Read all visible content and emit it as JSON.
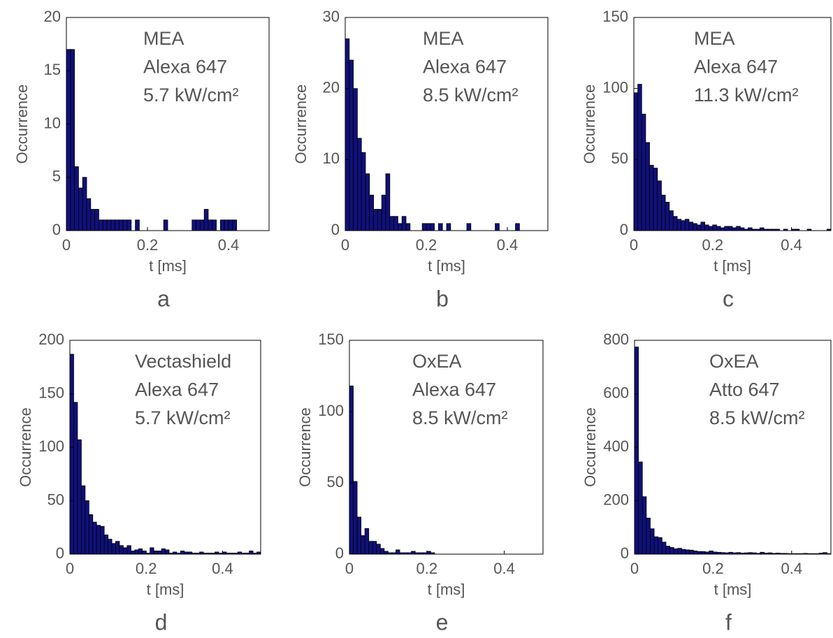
{
  "chart_data": [
    {
      "type": "histogram",
      "annotation": [
        "MEA",
        "Alexa 647",
        "5.7 kW/cm²"
      ],
      "xlabel": "t [ms]",
      "ylabel": "Occurrence",
      "panel": "a",
      "color": "#10107a",
      "bins": [
        0,
        0.01,
        0.02,
        0.03,
        0.04,
        0.05,
        0.06,
        0.07,
        0.08,
        0.09,
        0.1,
        0.11,
        0.12,
        0.13,
        0.14,
        0.15,
        0.16,
        0.17,
        0.18,
        0.19,
        0.2,
        0.21,
        0.22,
        0.23,
        0.24,
        0.25,
        0.26,
        0.27,
        0.28,
        0.29,
        0.3,
        0.31,
        0.32,
        0.33,
        0.34,
        0.35,
        0.36,
        0.37,
        0.38,
        0.39,
        0.4,
        0.41,
        0.42,
        0.43,
        0.44,
        0.45,
        0.46,
        0.47,
        0.48,
        0.49,
        0.5
      ],
      "values": [
        17,
        17,
        6,
        4,
        5,
        3,
        2,
        2,
        1,
        1,
        1,
        1,
        1,
        1,
        1,
        1,
        0,
        1,
        0,
        0,
        0,
        0,
        0,
        0,
        1,
        0,
        0,
        0,
        0,
        0,
        0,
        1,
        1,
        1,
        2,
        1,
        1,
        0,
        1,
        1,
        1,
        1,
        0,
        0,
        0,
        0,
        0,
        0,
        0,
        0
      ],
      "xlim": [
        0,
        0.5
      ],
      "xticks": [
        0,
        0.2,
        0.4
      ],
      "ylim": [
        0,
        20
      ],
      "yticks": [
        0,
        5,
        10,
        15,
        20
      ]
    },
    {
      "type": "histogram",
      "annotation": [
        "MEA",
        "Alexa 647",
        "8.5 kW/cm²"
      ],
      "xlabel": "t [ms]",
      "ylabel": "Occurrence",
      "panel": "b",
      "color": "#10107a",
      "bins": [
        0,
        0.01,
        0.02,
        0.03,
        0.04,
        0.05,
        0.06,
        0.07,
        0.08,
        0.09,
        0.1,
        0.11,
        0.12,
        0.13,
        0.14,
        0.15,
        0.16,
        0.17,
        0.18,
        0.19,
        0.2,
        0.21,
        0.22,
        0.23,
        0.24,
        0.25,
        0.26,
        0.27,
        0.28,
        0.29,
        0.3,
        0.31,
        0.32,
        0.33,
        0.34,
        0.35,
        0.36,
        0.37,
        0.38,
        0.39,
        0.4,
        0.41,
        0.42,
        0.43,
        0.44,
        0.45,
        0.46,
        0.47,
        0.48,
        0.49,
        0.5
      ],
      "values": [
        27,
        24,
        20,
        13,
        11,
        8,
        5,
        3,
        3,
        5,
        8,
        2,
        2,
        1,
        2,
        1,
        0,
        0,
        0,
        1,
        1,
        1,
        0,
        1,
        0,
        1,
        0,
        0,
        0,
        0,
        1,
        0,
        0,
        0,
        0,
        0,
        0,
        1,
        0,
        0,
        0,
        0,
        1,
        0,
        0,
        0,
        0,
        0,
        0,
        0
      ],
      "xlim": [
        0,
        0.5
      ],
      "xticks": [
        0,
        0.2,
        0.4
      ],
      "ylim": [
        0,
        30
      ],
      "yticks": [
        0,
        10,
        20,
        30
      ]
    },
    {
      "type": "histogram",
      "annotation": [
        "MEA",
        "Alexa 647",
        "11.3 kW/cm²"
      ],
      "xlabel": "t [ms]",
      "ylabel": "Occurrence",
      "panel": "c",
      "color": "#10107a",
      "bins": [
        0,
        0.01,
        0.02,
        0.03,
        0.04,
        0.05,
        0.06,
        0.07,
        0.08,
        0.09,
        0.1,
        0.11,
        0.12,
        0.13,
        0.14,
        0.15,
        0.16,
        0.17,
        0.18,
        0.19,
        0.2,
        0.21,
        0.22,
        0.23,
        0.24,
        0.25,
        0.26,
        0.27,
        0.28,
        0.29,
        0.3,
        0.31,
        0.32,
        0.33,
        0.34,
        0.35,
        0.36,
        0.37,
        0.38,
        0.39,
        0.4,
        0.41,
        0.42,
        0.43,
        0.44,
        0.45,
        0.46,
        0.47,
        0.48,
        0.49,
        0.5
      ],
      "values": [
        97,
        103,
        82,
        62,
        46,
        44,
        35,
        25,
        20,
        14,
        10,
        8,
        7,
        8,
        6,
        5,
        4,
        6,
        4,
        3,
        4,
        3,
        2,
        3,
        3,
        2,
        3,
        2,
        1,
        2,
        1,
        1,
        2,
        1,
        1,
        1,
        1,
        0,
        1,
        0,
        1,
        1,
        0,
        0,
        1,
        0,
        0,
        0,
        0,
        1
      ],
      "xlim": [
        0,
        0.5
      ],
      "xticks": [
        0,
        0.2,
        0.4
      ],
      "ylim": [
        0,
        150
      ],
      "yticks": [
        0,
        50,
        100,
        150
      ]
    },
    {
      "type": "histogram",
      "annotation": [
        "Vectashield",
        "Alexa 647",
        "5.7 kW/cm²"
      ],
      "xlabel": "t [ms]",
      "ylabel": "Occurrence",
      "panel": "d",
      "color": "#10107a",
      "bins": [
        0,
        0.01,
        0.02,
        0.03,
        0.04,
        0.05,
        0.06,
        0.07,
        0.08,
        0.09,
        0.1,
        0.11,
        0.12,
        0.13,
        0.14,
        0.15,
        0.16,
        0.17,
        0.18,
        0.19,
        0.2,
        0.21,
        0.22,
        0.23,
        0.24,
        0.25,
        0.26,
        0.27,
        0.28,
        0.29,
        0.3,
        0.31,
        0.32,
        0.33,
        0.34,
        0.35,
        0.36,
        0.37,
        0.38,
        0.39,
        0.4,
        0.41,
        0.42,
        0.43,
        0.44,
        0.45,
        0.46,
        0.47,
        0.48,
        0.49,
        0.5
      ],
      "values": [
        187,
        142,
        107,
        64,
        50,
        37,
        30,
        27,
        26,
        18,
        14,
        10,
        12,
        8,
        6,
        8,
        3,
        4,
        5,
        3,
        1,
        6,
        3,
        3,
        5,
        4,
        1,
        2,
        1,
        3,
        2,
        2,
        1,
        1,
        2,
        1,
        1,
        1,
        2,
        1,
        2,
        1,
        1,
        1,
        2,
        1,
        1,
        3,
        1,
        2
      ],
      "xlim": [
        0,
        0.5
      ],
      "xticks": [
        0,
        0.2,
        0.4
      ],
      "ylim": [
        0,
        200
      ],
      "yticks": [
        0,
        50,
        100,
        150,
        200
      ]
    },
    {
      "type": "histogram",
      "annotation": [
        "OxEA",
        "Alexa 647",
        "8.5 kW/cm²"
      ],
      "xlabel": "t [ms]",
      "ylabel": "Occurrence",
      "panel": "e",
      "color": "#10107a",
      "bins": [
        0,
        0.01,
        0.02,
        0.03,
        0.04,
        0.05,
        0.06,
        0.07,
        0.08,
        0.09,
        0.1,
        0.11,
        0.12,
        0.13,
        0.14,
        0.15,
        0.16,
        0.17,
        0.18,
        0.19,
        0.2,
        0.21,
        0.22,
        0.23,
        0.24,
        0.25,
        0.26,
        0.27,
        0.28,
        0.29,
        0.3,
        0.31,
        0.32,
        0.33,
        0.34,
        0.35,
        0.36,
        0.37,
        0.38,
        0.39,
        0.4,
        0.41,
        0.42,
        0.43,
        0.44,
        0.45,
        0.46,
        0.47,
        0.48,
        0.49,
        0.5
      ],
      "values": [
        118,
        51,
        26,
        13,
        18,
        9,
        9,
        7,
        4,
        2,
        1,
        1,
        3,
        1,
        1,
        1,
        2,
        1,
        1,
        1,
        2,
        1,
        0,
        0,
        0,
        0,
        0,
        0,
        0,
        0,
        0,
        0,
        0,
        0,
        0,
        0,
        0,
        0,
        0,
        0,
        0,
        0,
        0,
        0,
        0,
        0,
        0,
        0,
        0,
        0
      ],
      "xlim": [
        0,
        0.5
      ],
      "xticks": [
        0,
        0.2,
        0.4
      ],
      "ylim": [
        0,
        150
      ],
      "yticks": [
        0,
        50,
        100,
        150
      ]
    },
    {
      "type": "histogram",
      "annotation": [
        "OxEA",
        "Atto 647",
        "8.5 kW/cm²"
      ],
      "xlabel": "t [ms]",
      "ylabel": "Occurrence",
      "panel": "f",
      "color": "#10107a",
      "bins": [
        0,
        0.01,
        0.02,
        0.03,
        0.04,
        0.05,
        0.06,
        0.07,
        0.08,
        0.09,
        0.1,
        0.11,
        0.12,
        0.13,
        0.14,
        0.15,
        0.16,
        0.17,
        0.18,
        0.19,
        0.2,
        0.21,
        0.22,
        0.23,
        0.24,
        0.25,
        0.26,
        0.27,
        0.28,
        0.29,
        0.3,
        0.31,
        0.32,
        0.33,
        0.34,
        0.35,
        0.36,
        0.37,
        0.38,
        0.39,
        0.4,
        0.41,
        0.42,
        0.43,
        0.44,
        0.45,
        0.46,
        0.47,
        0.48,
        0.49,
        0.5
      ],
      "values": [
        775,
        345,
        215,
        135,
        95,
        65,
        62,
        45,
        30,
        25,
        20,
        22,
        18,
        16,
        15,
        12,
        10,
        10,
        8,
        12,
        8,
        7,
        6,
        5,
        7,
        5,
        6,
        4,
        5,
        6,
        5,
        3,
        7,
        4,
        5,
        3,
        4,
        3,
        3,
        2,
        2,
        2,
        2,
        3,
        2,
        2,
        2,
        4,
        6,
        2
      ],
      "xlim": [
        0,
        0.5
      ],
      "xticks": [
        0,
        0.2,
        0.4
      ],
      "ylim": [
        0,
        800
      ],
      "yticks": [
        0,
        200,
        400,
        600,
        800
      ]
    }
  ]
}
